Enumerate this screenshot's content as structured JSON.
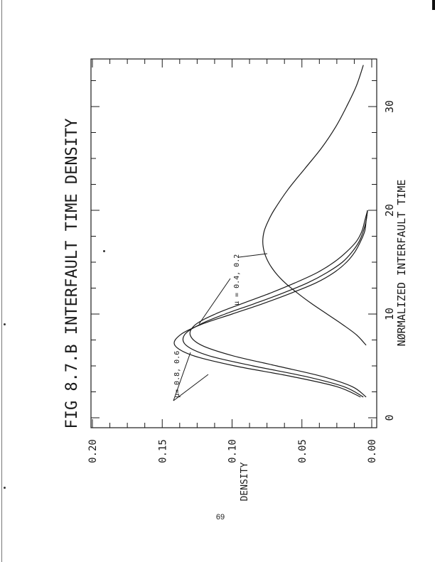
{
  "page": {
    "number": "69"
  },
  "chart_data": {
    "type": "line",
    "title": "FIG 8.7.B INTERFAULT TIME DENSITY",
    "xlabel": "NØRMALIZED INTERFAULT TIME",
    "ylabel": "DENSITY",
    "xlim": [
      0,
      36
    ],
    "ylim": [
      0,
      0.2
    ],
    "x_ticks": [
      "0",
      "10",
      "20",
      "30"
    ],
    "y_ticks": [
      "0.00",
      "0.05",
      "0.10",
      "0.15",
      "0.20"
    ],
    "grid": false,
    "annotations": [
      {
        "text": "μ= 0.8, 0.6",
        "target_series": [
          0,
          1
        ]
      },
      {
        "text": "μ = 0.4, 0.2",
        "target_series": [
          2,
          3
        ]
      }
    ],
    "series": [
      {
        "x": [
          2,
          3,
          4,
          5,
          6,
          7,
          8,
          9,
          10,
          11,
          12,
          13,
          14,
          15,
          16,
          17,
          18,
          19,
          20
        ],
        "values": [
          0.008,
          0.025,
          0.058,
          0.098,
          0.128,
          0.141,
          0.137,
          0.122,
          0.1,
          0.078,
          0.058,
          0.04,
          0.027,
          0.018,
          0.012,
          0.008,
          0.005,
          0.004,
          0.003
        ]
      },
      {
        "x": [
          2,
          3,
          4,
          5,
          6,
          7,
          8,
          9,
          10,
          11,
          12,
          13,
          14,
          15,
          16,
          17,
          18,
          19,
          20
        ],
        "values": [
          0.006,
          0.02,
          0.048,
          0.085,
          0.117,
          0.133,
          0.134,
          0.123,
          0.105,
          0.084,
          0.064,
          0.046,
          0.032,
          0.021,
          0.014,
          0.009,
          0.006,
          0.004,
          0.003
        ]
      },
      {
        "x": [
          2,
          3,
          4,
          5,
          6,
          7,
          8,
          9,
          10,
          11,
          12,
          13,
          14,
          15,
          16,
          17,
          18,
          19,
          20
        ],
        "values": [
          0.004,
          0.014,
          0.036,
          0.068,
          0.1,
          0.122,
          0.13,
          0.126,
          0.112,
          0.093,
          0.073,
          0.055,
          0.039,
          0.027,
          0.018,
          0.011,
          0.007,
          0.005,
          0.003
        ]
      },
      {
        "x": [
          7,
          8,
          9,
          10,
          11,
          12,
          13,
          14,
          15,
          16,
          17,
          18,
          19,
          20,
          22,
          24,
          26,
          28,
          30,
          32,
          34
        ],
        "values": [
          0.004,
          0.011,
          0.021,
          0.032,
          0.043,
          0.053,
          0.062,
          0.069,
          0.074,
          0.077,
          0.078,
          0.077,
          0.074,
          0.07,
          0.06,
          0.048,
          0.036,
          0.026,
          0.018,
          0.011,
          0.006
        ]
      }
    ]
  }
}
